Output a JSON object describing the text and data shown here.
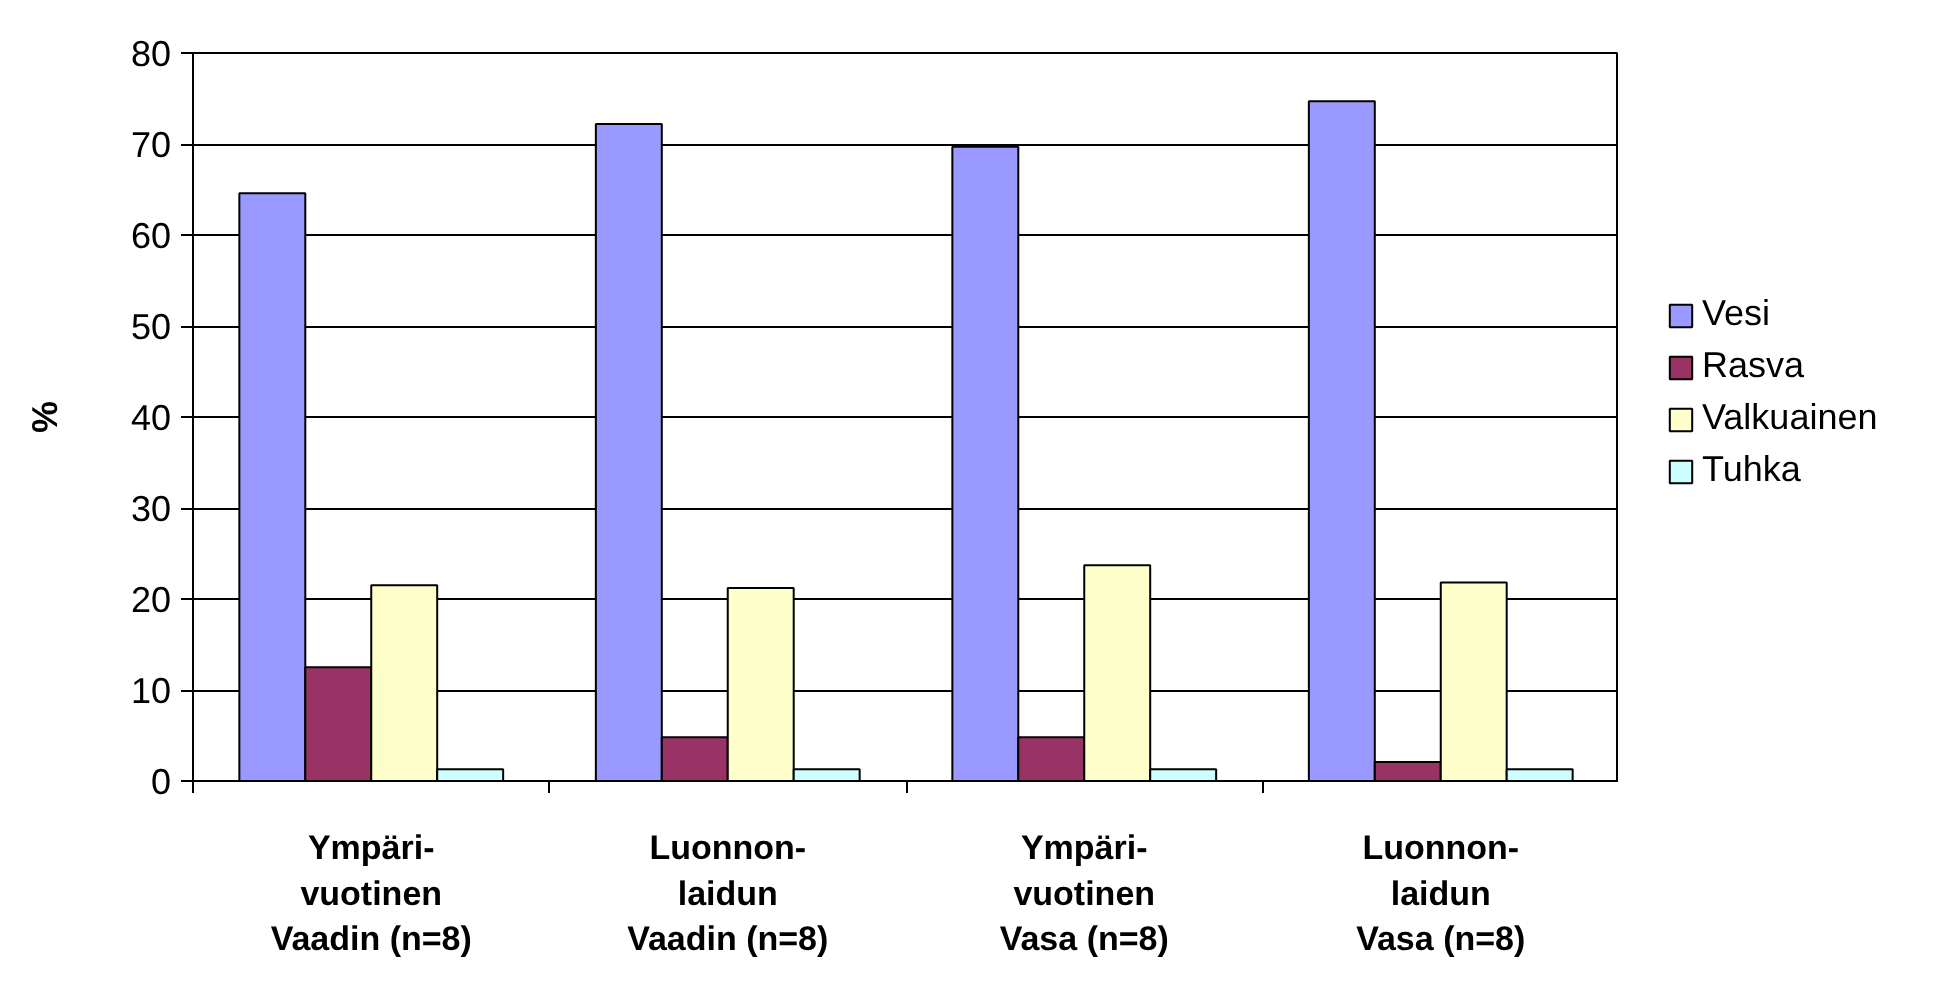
{
  "chart_data": {
    "type": "bar",
    "ylabel": "%",
    "categories": [
      "Ympäri-\nvuotinen\nVaadin (n=8)",
      "Luonnon-\nlaidun\nVaadin (n=8)",
      "Ympäri-\nvuotinen\nVasa (n=8)",
      "Luonnon-\nlaidun\nVasa (n=8)"
    ],
    "series": [
      {
        "name": "Vesi",
        "color": "#9999ff",
        "values": [
          64.6,
          72.2,
          69.7,
          74.7
        ]
      },
      {
        "name": "Rasva",
        "color": "#993366",
        "values": [
          12.5,
          4.8,
          4.8,
          2.1
        ]
      },
      {
        "name": "Valkuainen",
        "color": "#ffffcc",
        "values": [
          21.5,
          21.2,
          23.7,
          21.8
        ]
      },
      {
        "name": "Tuhka",
        "color": "#ccffff",
        "values": [
          1.3,
          1.3,
          1.3,
          1.3
        ]
      }
    ],
    "ylim": [
      0,
      80
    ],
    "yticks": [
      0,
      10,
      20,
      30,
      40,
      50,
      60,
      70,
      80
    ],
    "grid": "y",
    "legend": "right"
  }
}
